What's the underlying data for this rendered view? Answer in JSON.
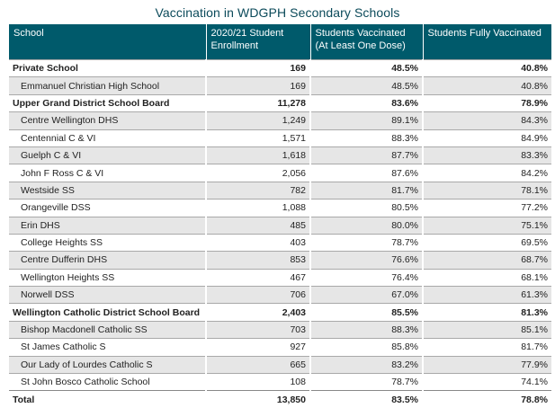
{
  "title": "Vaccination in WDGPH Secondary Schools",
  "colors": {
    "header_bg": "#005a6b",
    "shade": "#e6e6e6"
  },
  "columns": [
    "School",
    "2020/21 Student Enrollment",
    "Students Vaccinated (At Least One Dose)",
    "Students Fully Vaccinated"
  ],
  "rows": [
    {
      "type": "group",
      "school": "Private School",
      "enrollment": "169",
      "one_dose": "48.5%",
      "fully": "40.8%"
    },
    {
      "type": "child",
      "school": "Emmanuel Christian High School",
      "enrollment": "169",
      "one_dose": "48.5%",
      "fully": "40.8%"
    },
    {
      "type": "group",
      "school": "Upper Grand District School Board",
      "enrollment": "11,278",
      "one_dose": "83.6%",
      "fully": "78.9%"
    },
    {
      "type": "child",
      "school": "Centre Wellington DHS",
      "enrollment": "1,249",
      "one_dose": "89.1%",
      "fully": "84.3%"
    },
    {
      "type": "child",
      "school": "Centennial C & VI",
      "enrollment": "1,571",
      "one_dose": "88.3%",
      "fully": "84.9%"
    },
    {
      "type": "child",
      "school": "Guelph C & VI",
      "enrollment": "1,618",
      "one_dose": "87.7%",
      "fully": "83.3%"
    },
    {
      "type": "child",
      "school": "John F Ross C & VI",
      "enrollment": "2,056",
      "one_dose": "87.6%",
      "fully": "84.2%"
    },
    {
      "type": "child",
      "school": "Westside SS",
      "enrollment": "782",
      "one_dose": "81.7%",
      "fully": "78.1%"
    },
    {
      "type": "child",
      "school": "Orangeville DSS",
      "enrollment": "1,088",
      "one_dose": "80.5%",
      "fully": "77.2%"
    },
    {
      "type": "child",
      "school": "Erin DHS",
      "enrollment": "485",
      "one_dose": "80.0%",
      "fully": "75.1%"
    },
    {
      "type": "child",
      "school": "College Heights SS",
      "enrollment": "403",
      "one_dose": "78.7%",
      "fully": "69.5%"
    },
    {
      "type": "child",
      "school": "Centre Dufferin DHS",
      "enrollment": "853",
      "one_dose": "76.6%",
      "fully": "68.7%"
    },
    {
      "type": "child",
      "school": "Wellington Heights SS",
      "enrollment": "467",
      "one_dose": "76.4%",
      "fully": "68.1%"
    },
    {
      "type": "child",
      "school": "Norwell DSS",
      "enrollment": "706",
      "one_dose": "67.0%",
      "fully": "61.3%"
    },
    {
      "type": "group",
      "school": "Wellington Catholic District School Board",
      "enrollment": "2,403",
      "one_dose": "85.5%",
      "fully": "81.3%"
    },
    {
      "type": "child",
      "school": "Bishop Macdonell Catholic SS",
      "enrollment": "703",
      "one_dose": "88.3%",
      "fully": "85.1%"
    },
    {
      "type": "child",
      "school": "St James Catholic S",
      "enrollment": "927",
      "one_dose": "85.8%",
      "fully": "81.7%"
    },
    {
      "type": "child",
      "school": "Our Lady of Lourdes Catholic S",
      "enrollment": "665",
      "one_dose": "83.2%",
      "fully": "77.9%"
    },
    {
      "type": "child",
      "school": "St John Bosco Catholic School",
      "enrollment": "108",
      "one_dose": "78.7%",
      "fully": "74.1%"
    },
    {
      "type": "total",
      "school": "Total",
      "enrollment": "13,850",
      "one_dose": "83.5%",
      "fully": "78.8%"
    }
  ]
}
